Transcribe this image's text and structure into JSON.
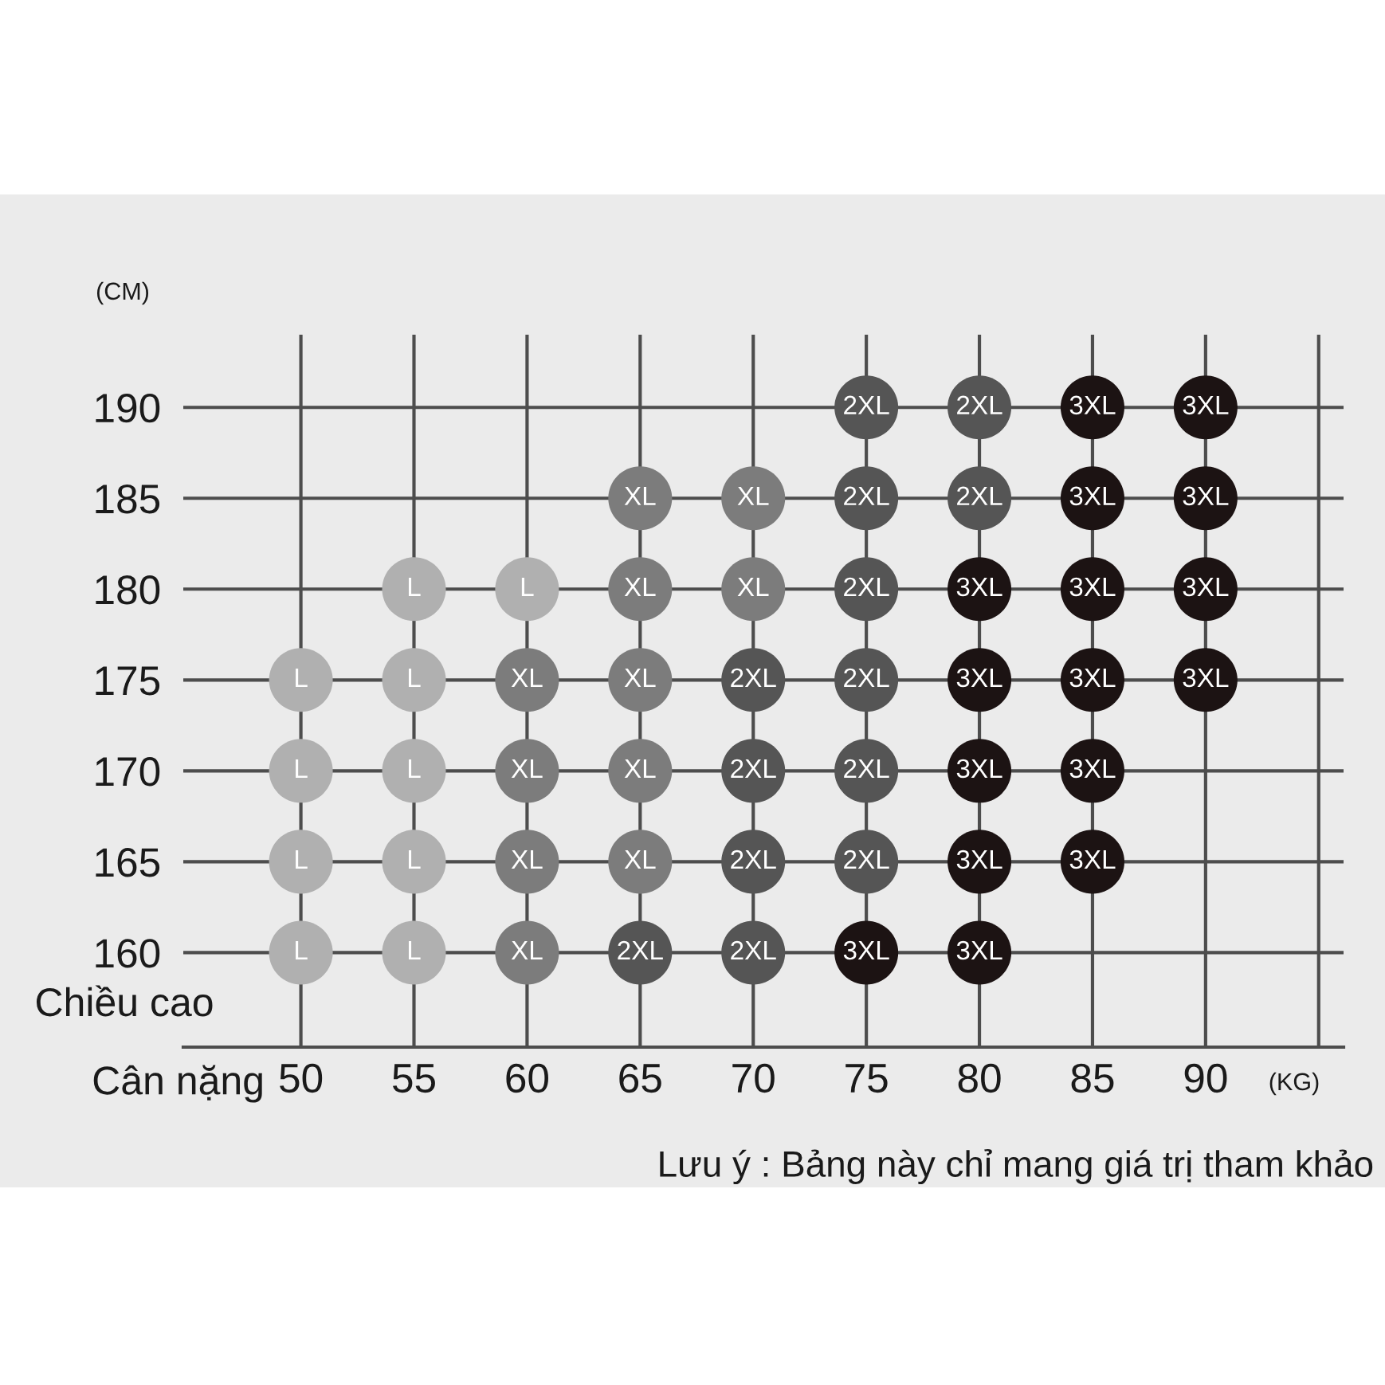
{
  "chart_data": {
    "type": "scatter",
    "xlabel": "(KG)",
    "ylabel": "(CM)",
    "annotations": [
      "Chiều cao",
      "Cân nặng",
      "Lưu ý : Bảng này chỉ mang giá trị tham khảo"
    ],
    "xlim": [
      44.8,
      96.1
    ],
    "ylim": [
      154.8,
      194
    ],
    "xticks": [
      50,
      55,
      60,
      65,
      70,
      75,
      80,
      85,
      90,
      {
        "value": 95,
        "label": null
      }
    ],
    "yticks": [
      160,
      165,
      170,
      175,
      180,
      185,
      190
    ],
    "grid": true,
    "marker": "circle",
    "series": [
      {
        "name": "L",
        "color": "#b0b0b0",
        "x": [
          50,
          50,
          50,
          50,
          55,
          55,
          55,
          55,
          55,
          60
        ],
        "values": [
          175,
          170,
          165,
          160,
          180,
          175,
          170,
          165,
          160,
          180
        ]
      },
      {
        "name": "XL",
        "color": "#7c7c7c",
        "x": [
          60,
          60,
          60,
          60,
          65,
          65,
          65,
          65,
          65,
          70,
          70
        ],
        "values": [
          175,
          170,
          165,
          160,
          185,
          180,
          175,
          170,
          165,
          185,
          180
        ]
      },
      {
        "name": "2XL",
        "color": "#555555",
        "x": [
          65,
          70,
          70,
          70,
          70,
          75,
          75,
          75,
          75,
          75,
          75,
          80,
          80
        ],
        "values": [
          160,
          175,
          170,
          165,
          160,
          190,
          185,
          180,
          175,
          170,
          165,
          190,
          185
        ]
      },
      {
        "name": "3XL",
        "color": "#1c1313",
        "x": [
          75,
          80,
          80,
          80,
          80,
          80,
          85,
          85,
          85,
          85,
          85,
          85,
          90,
          90,
          90,
          90
        ],
        "values": [
          160,
          180,
          175,
          170,
          165,
          160,
          190,
          185,
          180,
          175,
          170,
          165,
          190,
          185,
          180,
          175
        ]
      }
    ]
  }
}
